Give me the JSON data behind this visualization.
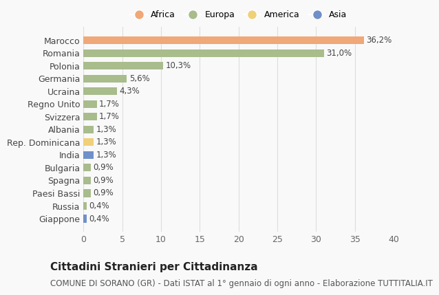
{
  "countries": [
    "Marocco",
    "Romania",
    "Polonia",
    "Germania",
    "Ucraina",
    "Regno Unito",
    "Svizzera",
    "Albania",
    "Rep. Dominicana",
    "India",
    "Bulgaria",
    "Spagna",
    "Paesi Bassi",
    "Russia",
    "Giappone"
  ],
  "values": [
    36.2,
    31.0,
    10.3,
    5.6,
    4.3,
    1.7,
    1.7,
    1.3,
    1.3,
    1.3,
    0.9,
    0.9,
    0.9,
    0.4,
    0.4
  ],
  "labels": [
    "36,2%",
    "31,0%",
    "10,3%",
    "5,6%",
    "4,3%",
    "1,7%",
    "1,7%",
    "1,3%",
    "1,3%",
    "1,3%",
    "0,9%",
    "0,9%",
    "0,9%",
    "0,4%",
    "0,4%"
  ],
  "continent": [
    "Africa",
    "Europa",
    "Europa",
    "Europa",
    "Europa",
    "Europa",
    "Europa",
    "Europa",
    "America",
    "Asia",
    "Europa",
    "Europa",
    "Europa",
    "Europa",
    "Asia"
  ],
  "colors": {
    "Africa": "#F0A878",
    "Europa": "#A8BC8C",
    "America": "#F0D078",
    "Asia": "#7090C8"
  },
  "legend_order": [
    "Africa",
    "Europa",
    "America",
    "Asia"
  ],
  "title": "Cittadini Stranieri per Cittadinanza",
  "subtitle": "COMUNE DI SORANO (GR) - Dati ISTAT al 1° gennaio di ogni anno - Elaborazione TUTTITALIA.IT",
  "xlim": [
    0,
    40
  ],
  "xticks": [
    0,
    5,
    10,
    15,
    20,
    25,
    30,
    35,
    40
  ],
  "background_color": "#f9f9f9",
  "grid_color": "#dddddd",
  "bar_height": 0.6,
  "title_fontsize": 11,
  "subtitle_fontsize": 8.5,
  "tick_fontsize": 9,
  "label_fontsize": 8.5,
  "legend_fontsize": 9
}
